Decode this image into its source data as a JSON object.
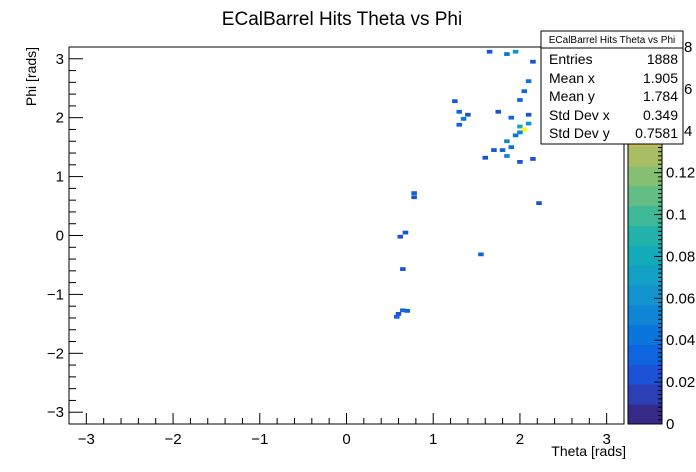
{
  "chart_data": {
    "type": "heatmap",
    "title": "ECalBarrel Hits Theta vs Phi",
    "xlabel": "Theta [rads]",
    "ylabel": "Phi [rads]",
    "xlim": [
      -3.2,
      3.2
    ],
    "ylim": [
      -3.2,
      3.2
    ],
    "zlim": [
      0,
      0.18
    ],
    "x_ticks": [
      "−3",
      "−2",
      "−1",
      "0",
      "1",
      "2",
      "3"
    ],
    "y_ticks": [
      "−3",
      "−2",
      "−1",
      "0",
      "1",
      "2",
      "3"
    ],
    "z_ticks": [
      "0",
      "0.02",
      "0.04",
      "0.06",
      "0.08",
      "0.1",
      "0.12",
      "0.14",
      "0.16",
      "0.18"
    ],
    "z_ticks_visible": [
      "0",
      "0.02",
      "0.04",
      "0.06",
      "0.08",
      "0.1",
      "0.12"
    ],
    "z_ticks_partial": [
      "8",
      "6",
      "4"
    ],
    "bin_width": 0.064,
    "cells": [
      {
        "x": 1.65,
        "y": 3.12,
        "z": 0.02
      },
      {
        "x": 1.85,
        "y": 3.08,
        "z": 0.04
      },
      {
        "x": 1.95,
        "y": 3.12,
        "z": 0.06
      },
      {
        "x": 2.15,
        "y": 2.95,
        "z": 0.02
      },
      {
        "x": 2.1,
        "y": 2.62,
        "z": 0.04
      },
      {
        "x": 2.05,
        "y": 2.45,
        "z": 0.03
      },
      {
        "x": 2.0,
        "y": 2.3,
        "z": 0.03
      },
      {
        "x": 1.25,
        "y": 2.28,
        "z": 0.02
      },
      {
        "x": 1.3,
        "y": 2.1,
        "z": 0.03
      },
      {
        "x": 1.35,
        "y": 1.98,
        "z": 0.04
      },
      {
        "x": 1.4,
        "y": 2.05,
        "z": 0.02
      },
      {
        "x": 1.3,
        "y": 1.88,
        "z": 0.03
      },
      {
        "x": 1.75,
        "y": 2.1,
        "z": 0.02
      },
      {
        "x": 1.9,
        "y": 2.0,
        "z": 0.03
      },
      {
        "x": 2.1,
        "y": 2.05,
        "z": 0.02
      },
      {
        "x": 2.0,
        "y": 1.85,
        "z": 0.08
      },
      {
        "x": 2.05,
        "y": 1.8,
        "z": 0.18
      },
      {
        "x": 2.0,
        "y": 1.75,
        "z": 0.05
      },
      {
        "x": 2.1,
        "y": 1.9,
        "z": 0.06
      },
      {
        "x": 1.95,
        "y": 1.7,
        "z": 0.04
      },
      {
        "x": 1.85,
        "y": 1.6,
        "z": 0.05
      },
      {
        "x": 1.8,
        "y": 1.45,
        "z": 0.03
      },
      {
        "x": 1.7,
        "y": 1.45,
        "z": 0.02
      },
      {
        "x": 1.9,
        "y": 1.5,
        "z": 0.04
      },
      {
        "x": 1.6,
        "y": 1.32,
        "z": 0.02
      },
      {
        "x": 1.85,
        "y": 1.35,
        "z": 0.05
      },
      {
        "x": 2.0,
        "y": 1.25,
        "z": 0.02
      },
      {
        "x": 2.15,
        "y": 1.3,
        "z": 0.02
      },
      {
        "x": 0.78,
        "y": 0.72,
        "z": 0.03
      },
      {
        "x": 0.78,
        "y": 0.65,
        "z": 0.02
      },
      {
        "x": 2.22,
        "y": 0.55,
        "z": 0.02
      },
      {
        "x": 0.68,
        "y": 0.05,
        "z": 0.02
      },
      {
        "x": 0.62,
        "y": -0.02,
        "z": 0.02
      },
      {
        "x": 1.55,
        "y": -0.32,
        "z": 0.03
      },
      {
        "x": 0.65,
        "y": -0.57,
        "z": 0.02
      },
      {
        "x": 0.65,
        "y": -1.27,
        "z": 0.03
      },
      {
        "x": 0.7,
        "y": -1.28,
        "z": 0.03
      },
      {
        "x": 0.6,
        "y": -1.33,
        "z": 0.02
      },
      {
        "x": 0.58,
        "y": -1.38,
        "z": 0.03
      }
    ],
    "grid": false,
    "legend": "top-right",
    "stats": {
      "title": "ECalBarrel Hits Theta vs Phi",
      "rows": [
        {
          "label": "Entries",
          "value": "1888"
        },
        {
          "label": "Mean x",
          "value": "1.905"
        },
        {
          "label": "Mean y",
          "value": "1.784"
        },
        {
          "label": "Std Dev x",
          "value": "0.349"
        },
        {
          "label": "Std Dev y",
          "value": "0.7581"
        }
      ]
    },
    "palette": [
      "#352a87",
      "#2c3fb5",
      "#1c52d6",
      "#0f64df",
      "#0a75dd",
      "#1085d5",
      "#1394cf",
      "#12a0c5",
      "#13aab9",
      "#22b2a9",
      "#3eb997",
      "#62be84",
      "#86bf72",
      "#a9bd63",
      "#cabc58",
      "#e7bb4f",
      "#f8c43d",
      "#f9d72a",
      "#f9fb0e"
    ]
  }
}
